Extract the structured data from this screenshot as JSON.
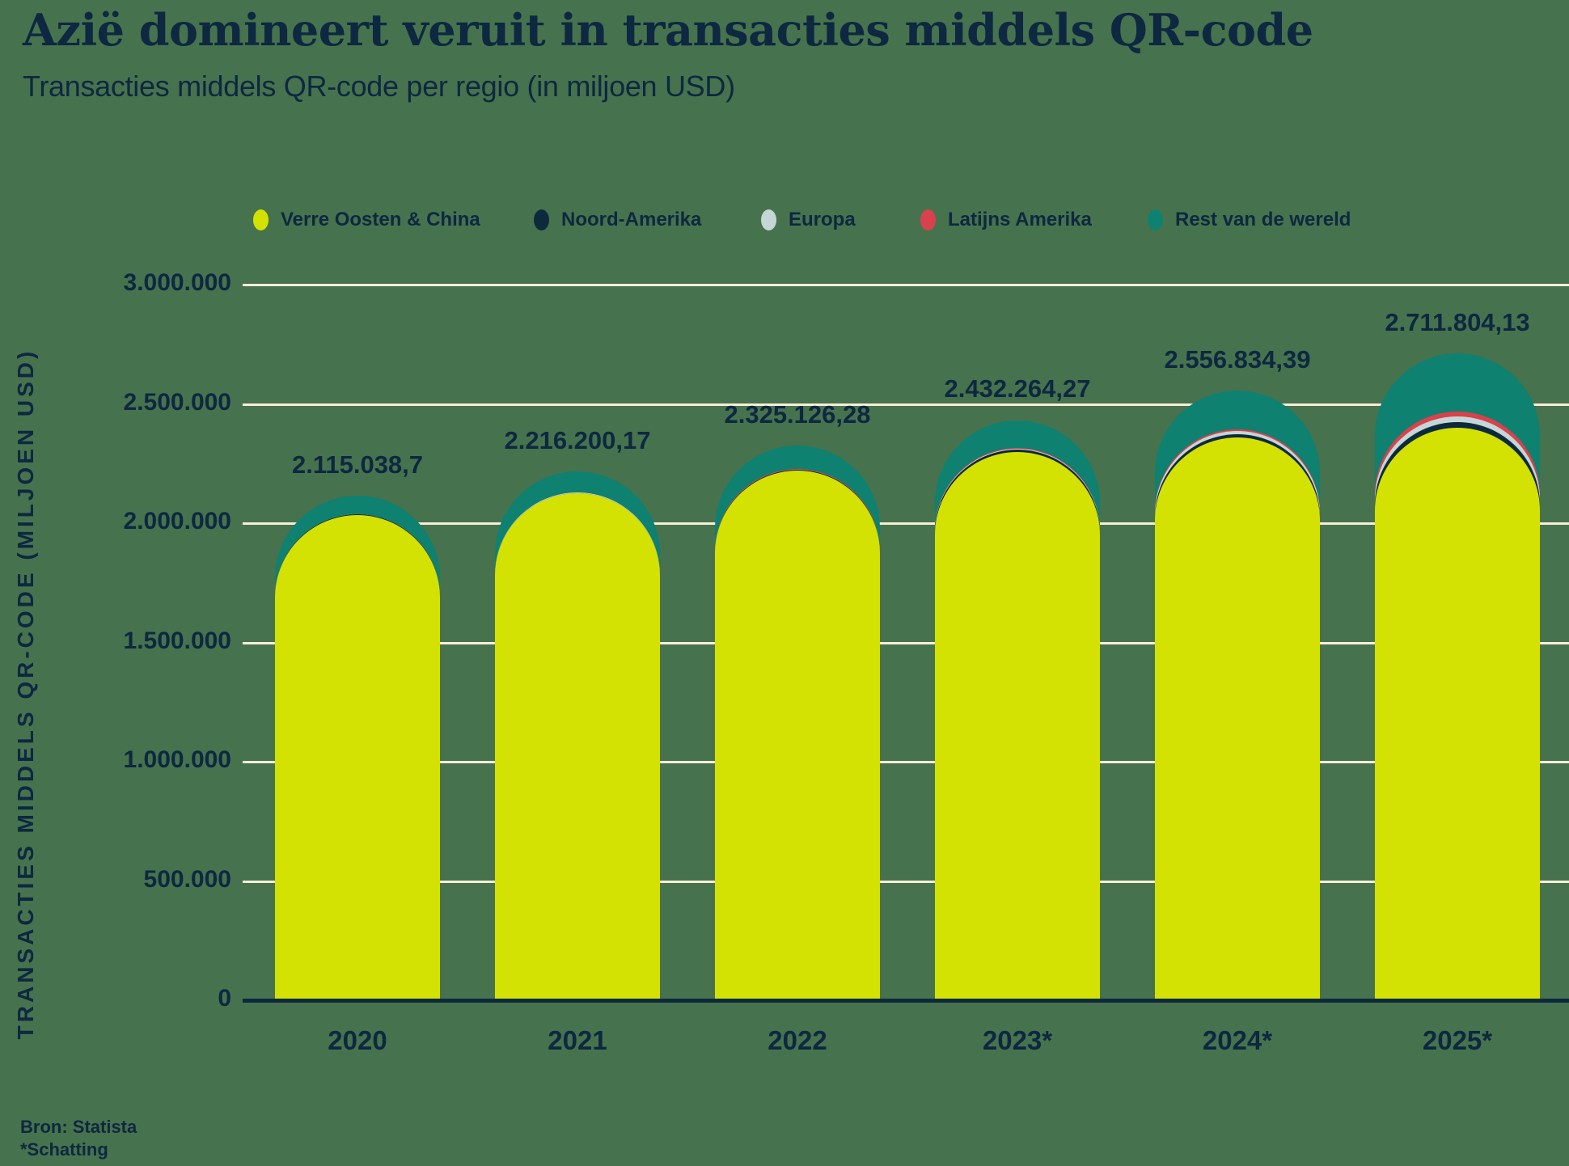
{
  "title": "Azië domineert veruit in transacties middels QR-code",
  "subtitle": "Transacties middels QR-code per regio (in miljoen USD)",
  "source_line1": "Bron: Statista",
  "source_line2": "*Schatting",
  "colors": {
    "background": "#47724e",
    "text_navy": "#0d2840",
    "gridline_cream": "#f7eed8",
    "axis_navy": "#0d2a3d"
  },
  "legend": {
    "items": [
      {
        "label": "Verre Oosten & China",
        "color": "#d3e203"
      },
      {
        "label": "Noord-Amerika",
        "color": "#0d2a3d"
      },
      {
        "label": "Europa",
        "color": "#c4d6d6"
      },
      {
        "label": "Latijns Amerika",
        "color": "#d9414c"
      },
      {
        "label": "Rest van de wereld",
        "color": "#0e8170"
      }
    ]
  },
  "chart_data": {
    "type": "bar",
    "subtype": "stacked-rounded-top",
    "title": "Azië domineert veruit in transacties middels QR-code",
    "subtitle": "Transacties middels QR-code per regio (in miljoen USD)",
    "ylabel": "TRANSACTIES MIDDELS QR-CODE (MILJOEN USD)",
    "xlabel": "",
    "categories": [
      "2020",
      "2021",
      "2022",
      "2023*",
      "2024*",
      "2025*"
    ],
    "series": [
      {
        "name": "Verre Oosten & China",
        "color": "#d3e203",
        "values": [
          2035000,
          2125000,
          2220000,
          2300000,
          2360000,
          2400000
        ],
        "note": "estimated from bar heights"
      },
      {
        "name": "Noord-Amerika",
        "color": "#0d2a3d",
        "values": [
          1500,
          2000,
          3000,
          8000,
          14000,
          25000
        ],
        "note": "estimated from bar heights"
      },
      {
        "name": "Europa",
        "color": "#c4d6d6",
        "values": [
          1000,
          1500,
          2200,
          5500,
          12000,
          23000
        ],
        "note": "estimated from bar heights"
      },
      {
        "name": "Latijns Amerika",
        "color": "#d9414c",
        "values": [
          800,
          1000,
          1500,
          3000,
          7000,
          20000
        ],
        "note": "estimated from bar heights"
      },
      {
        "name": "Rest van de wereld",
        "color": "#0e8170",
        "values": [
          76738.7,
          86700.17,
          98426.28,
          115764.27,
          163834.39,
          243804.13
        ],
        "note": "estimated from bar heights"
      }
    ],
    "totals": [
      2115038.7,
      2216200.17,
      2325126.28,
      2432264.27,
      2556834.39,
      2711804.13
    ],
    "total_labels": [
      "2.115.038,7",
      "2.216.200,17",
      "2.325.126,28",
      "2.432.264,27",
      "2.556.834,39",
      "2.711.804,13"
    ],
    "yticks": [
      0,
      500000,
      1000000,
      1500000,
      2000000,
      2500000,
      3000000
    ],
    "ytick_labels": [
      "0",
      "500.000",
      "1.000.000",
      "1.500.000",
      "2.000.000",
      "2.500.000",
      "3.000.000"
    ],
    "ylim": [
      0,
      3000000
    ],
    "grid": true,
    "legend_position": "top"
  }
}
